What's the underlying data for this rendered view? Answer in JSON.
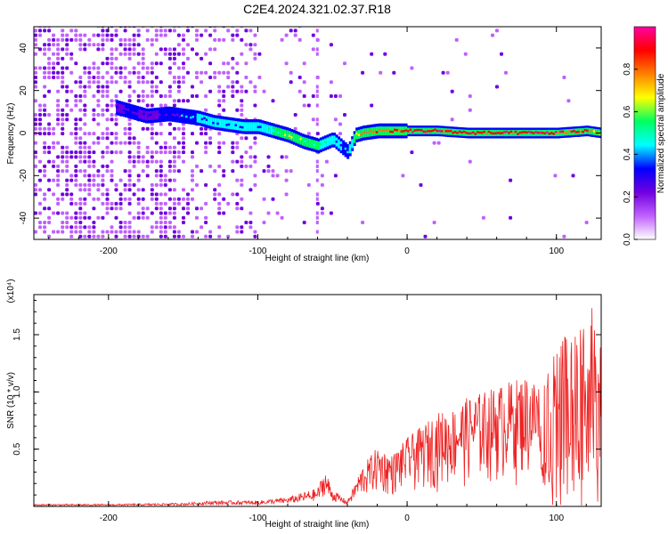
{
  "title": "C2E4.2024.321.02.37.R18",
  "chart_data": [
    {
      "type": "heatmap",
      "xlabel": "Height of straight line (km)",
      "ylabel": "Frequency (Hz)",
      "xlim": [
        -250,
        130
      ],
      "ylim": [
        -50,
        50
      ],
      "xticks": [
        -200,
        -100,
        0,
        100
      ],
      "yticks": [
        -40,
        -20,
        0,
        20,
        40
      ],
      "colorbar": {
        "label": "Normalized spectral amplitude",
        "range": [
          0,
          1
        ],
        "ticks": [
          "0.0",
          "0.2",
          "0.4",
          "0.6",
          "0.8"
        ],
        "colors": [
          "#ffffff",
          "#c060ff",
          "#7000e0",
          "#0000ff",
          "#00ffff",
          "#00ff60",
          "#ffff00",
          "#ff8000",
          "#ff0000",
          "#ff00a0"
        ]
      },
      "trace": {
        "x": [
          -195,
          -185,
          -175,
          -160,
          -150,
          -140,
          -130,
          -120,
          -110,
          -100,
          -90,
          -80,
          -70,
          -60,
          -50,
          -45,
          -40,
          -35,
          -30,
          -20,
          -10,
          0,
          20,
          40,
          60,
          80,
          100,
          120,
          130
        ],
        "y": [
          12,
          10,
          8,
          9,
          8,
          7,
          5,
          4,
          3,
          3,
          1,
          -1,
          -4,
          -6,
          -3,
          -6,
          -9,
          -1,
          0,
          1,
          1,
          1,
          1,
          0,
          0,
          0,
          0,
          1,
          0
        ],
        "amplitude": [
          0.25,
          0.3,
          0.25,
          0.3,
          0.35,
          0.4,
          0.4,
          0.4,
          0.45,
          0.45,
          0.5,
          0.6,
          0.55,
          0.5,
          0.45,
          0.4,
          0.35,
          0.6,
          0.75,
          0.8,
          0.85,
          0.9,
          0.9,
          0.9,
          0.9,
          0.9,
          0.9,
          0.85,
          0.7
        ]
      }
    },
    {
      "type": "line",
      "xlabel": "Height of straight line (km)",
      "ylabel": "SNR (10 * v/v)",
      "ylabel_scale": "(x10⁴)",
      "xlim": [
        -250,
        130
      ],
      "ylim": [
        0,
        1.85
      ],
      "xticks": [
        -200,
        -100,
        0,
        100
      ],
      "yticks": [
        "0.5",
        "1.0",
        "1.5"
      ],
      "line_color": "#ee2222",
      "envelope": {
        "x": [
          -250,
          -200,
          -150,
          -130,
          -100,
          -80,
          -60,
          -55,
          -50,
          -40,
          -35,
          -30,
          -20,
          -10,
          0,
          10,
          20,
          30,
          40,
          50,
          60,
          70,
          80,
          90,
          100,
          110,
          120,
          125,
          130
        ],
        "y": [
          0.02,
          0.02,
          0.03,
          0.05,
          0.05,
          0.08,
          0.16,
          0.33,
          0.15,
          0.05,
          0.2,
          0.35,
          0.52,
          0.45,
          0.6,
          0.7,
          0.82,
          0.85,
          0.95,
          1.0,
          1.05,
          1.1,
          1.15,
          1.1,
          1.4,
          1.55,
          1.7,
          1.84,
          1.35
        ]
      }
    }
  ]
}
